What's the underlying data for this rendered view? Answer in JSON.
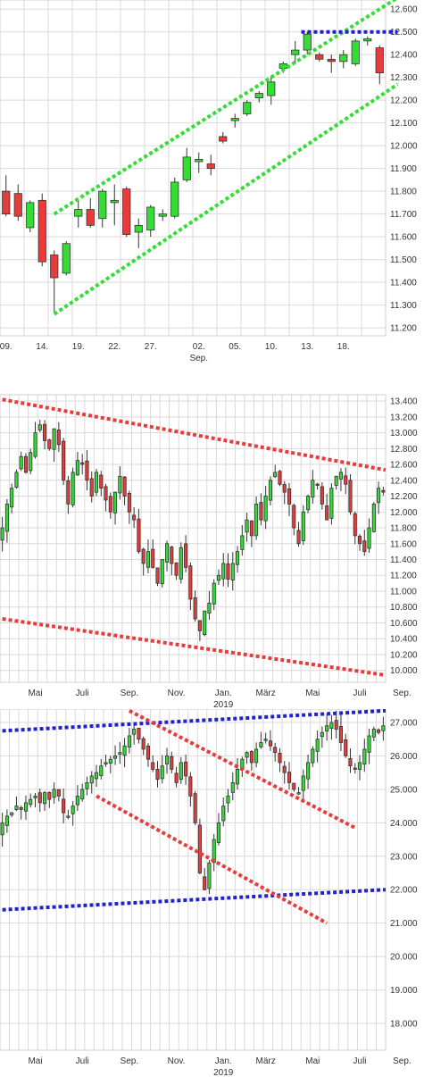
{
  "chart_data": [
    {
      "type": "candlestick",
      "panel": "daily",
      "y_ticks": [
        11200,
        11300,
        11400,
        11500,
        11600,
        11700,
        11800,
        11900,
        12000,
        12100,
        12200,
        12300,
        12400,
        12500,
        12600
      ],
      "y_tick_labels": [
        "11.200",
        "11.300",
        "11.400",
        "11.500",
        "11.600",
        "11.700",
        "11.800",
        "11.900",
        "12.000",
        "12.100",
        "12.200",
        "12.300",
        "12.400",
        "12.500",
        "12.600"
      ],
      "ylim": [
        11165,
        12640
      ],
      "x_tick_labels": [
        {
          "label": "09.",
          "sub": "",
          "index": 0
        },
        {
          "label": "14.",
          "sub": "",
          "index": 3
        },
        {
          "label": "19.",
          "sub": "",
          "index": 6
        },
        {
          "label": "22.",
          "sub": "",
          "index": 9
        },
        {
          "label": "27.",
          "sub": "",
          "index": 12
        },
        {
          "label": "02.",
          "sub": "Sep.",
          "index": 16
        },
        {
          "label": "05.",
          "sub": "",
          "index": 19
        },
        {
          "label": "10.",
          "sub": "",
          "index": 22
        },
        {
          "label": "13.",
          "sub": "",
          "index": 25
        },
        {
          "label": "18.",
          "sub": "",
          "index": 28
        }
      ],
      "candles": [
        {
          "o": 11800,
          "h": 11870,
          "l": 11690,
          "c": 11700
        },
        {
          "o": 11790,
          "h": 11830,
          "l": 11670,
          "c": 11690
        },
        {
          "o": 11640,
          "h": 11760,
          "l": 11620,
          "c": 11750
        },
        {
          "o": 11760,
          "h": 11790,
          "l": 11470,
          "c": 11490
        },
        {
          "o": 11520,
          "h": 11540,
          "l": 11270,
          "c": 11420
        },
        {
          "o": 11440,
          "h": 11580,
          "l": 11430,
          "c": 11570
        },
        {
          "o": 11690,
          "h": 11760,
          "l": 11640,
          "c": 11720
        },
        {
          "o": 11720,
          "h": 11770,
          "l": 11640,
          "c": 11650
        },
        {
          "o": 11680,
          "h": 11810,
          "l": 11640,
          "c": 11800
        },
        {
          "o": 11750,
          "h": 11830,
          "l": 11650,
          "c": 11760
        },
        {
          "o": 11810,
          "h": 11820,
          "l": 11600,
          "c": 11610
        },
        {
          "o": 11620,
          "h": 11680,
          "l": 11550,
          "c": 11650
        },
        {
          "o": 11630,
          "h": 11740,
          "l": 11600,
          "c": 11730
        },
        {
          "o": 11690,
          "h": 11720,
          "l": 11670,
          "c": 11700
        },
        {
          "o": 11690,
          "h": 11860,
          "l": 11680,
          "c": 11840
        },
        {
          "o": 11850,
          "h": 11990,
          "l": 11840,
          "c": 11950
        },
        {
          "o": 11930,
          "h": 11970,
          "l": 11880,
          "c": 11940
        },
        {
          "o": 11920,
          "h": 11960,
          "l": 11870,
          "c": 11900
        },
        {
          "o": 12040,
          "h": 12060,
          "l": 12010,
          "c": 12020
        },
        {
          "o": 12110,
          "h": 12140,
          "l": 12080,
          "c": 12120
        },
        {
          "o": 12140,
          "h": 12200,
          "l": 12130,
          "c": 12190
        },
        {
          "o": 12210,
          "h": 12240,
          "l": 12190,
          "c": 12230
        },
        {
          "o": 12220,
          "h": 12300,
          "l": 12180,
          "c": 12280
        },
        {
          "o": 12340,
          "h": 12370,
          "l": 12320,
          "c": 12360
        },
        {
          "o": 12400,
          "h": 12460,
          "l": 12360,
          "c": 12420
        },
        {
          "o": 12420,
          "h": 12500,
          "l": 12400,
          "c": 12490
        },
        {
          "o": 12400,
          "h": 12410,
          "l": 12370,
          "c": 12380
        },
        {
          "o": 12380,
          "h": 12400,
          "l": 12320,
          "c": 12370
        },
        {
          "o": 12370,
          "h": 12420,
          "l": 12340,
          "c": 12400
        },
        {
          "o": 12360,
          "h": 12470,
          "l": 12350,
          "c": 12460
        },
        {
          "o": 12460,
          "h": 12480,
          "l": 12440,
          "c": 12470
        },
        {
          "o": 12430,
          "h": 12440,
          "l": 12270,
          "c": 12320
        }
      ],
      "trendlines": [
        {
          "color": "#33dd33",
          "from": [
            4,
            11700
          ],
          "to": [
            32.5,
            12650
          ]
        },
        {
          "color": "#33dd33",
          "from": [
            4,
            11260
          ],
          "to": [
            32.5,
            12270
          ]
        },
        {
          "color": "#2222cc",
          "from": [
            24.5,
            12500
          ],
          "to": [
            32.5,
            12500
          ]
        }
      ],
      "colors": {
        "up": "#33dd33",
        "down": "#e83b3b",
        "outline": "#333333"
      }
    },
    {
      "type": "candlestick",
      "panel": "weekly",
      "y_ticks": [
        10000,
        10200,
        10400,
        10600,
        10800,
        11000,
        11200,
        11400,
        11600,
        11800,
        12000,
        12200,
        12400,
        12600,
        12800,
        13000,
        13200,
        13400
      ],
      "y_tick_labels": [
        "10.000",
        "10.200",
        "10.400",
        "10.600",
        "10.800",
        "11.000",
        "11.200",
        "11.400",
        "11.600",
        "11.800",
        "12.000",
        "12.200",
        "12.400",
        "12.600",
        "12.800",
        "13.000",
        "13.200",
        "13.400"
      ],
      "ylim": [
        9850,
        13480
      ],
      "x_tick_labels": [
        {
          "label": "Mai",
          "sub": "",
          "index": 7
        },
        {
          "label": "Juli",
          "sub": "",
          "index": 17
        },
        {
          "label": "Sep.",
          "sub": "",
          "index": 27
        },
        {
          "label": "Nov.",
          "sub": "",
          "index": 37
        },
        {
          "label": "Jan.",
          "sub": "2019",
          "index": 47
        },
        {
          "label": "März",
          "sub": "",
          "index": 56
        },
        {
          "label": "Mai",
          "sub": "",
          "index": 66
        },
        {
          "label": "Juli",
          "sub": "",
          "index": 76
        },
        {
          "label": "Sep.",
          "sub": "",
          "index": 85
        }
      ],
      "closes": [
        11800,
        12100,
        12300,
        12500,
        12700,
        12500,
        12750,
        13000,
        13100,
        12900,
        12800,
        13050,
        12850,
        12400,
        12100,
        12500,
        12650,
        12600,
        12400,
        12200,
        12500,
        12300,
        12150,
        12000,
        12250,
        12450,
        12200,
        12000,
        11900,
        11500,
        11350,
        11500,
        11300,
        11100,
        11400,
        11600,
        11350,
        11200,
        11550,
        11300,
        10900,
        10650,
        10500,
        10750,
        10850,
        11100,
        11200,
        11350,
        11150,
        11350,
        11500,
        11700,
        11900,
        11700,
        12100,
        11900,
        12200,
        12400,
        12500,
        12350,
        12250,
        12100,
        11800,
        11600,
        12000,
        12200,
        12400,
        12350,
        12100,
        11900,
        12300,
        12450,
        12500,
        12350,
        12000,
        11700,
        11600,
        11500,
        11800,
        12100,
        12300,
        12250
      ],
      "colors": {
        "up": "#33dd33",
        "down": "#e83b3b",
        "outline": "#333333"
      }
    },
    {
      "type": "candlestick",
      "panel": "long-term",
      "y_ticks": [
        18000,
        19000,
        20000,
        21000,
        22000,
        23000,
        24000,
        25000,
        26000,
        27000
      ],
      "y_tick_labels": [
        "18.000",
        "19.000",
        "20.000",
        "21.000",
        "22.000",
        "23.000",
        "24.000",
        "25.000",
        "26.000",
        "27.000"
      ],
      "ylim": [
        17200,
        27400
      ],
      "x_tick_labels": [
        {
          "label": "Mai",
          "sub": "",
          "index": 7
        },
        {
          "label": "Juli",
          "sub": "",
          "index": 17
        },
        {
          "label": "Sep.",
          "sub": "",
          "index": 27
        },
        {
          "label": "Nov.",
          "sub": "",
          "index": 37
        },
        {
          "label": "Jan.",
          "sub": "2019",
          "index": 47
        },
        {
          "label": "März",
          "sub": "",
          "index": 56
        },
        {
          "label": "Mai",
          "sub": "",
          "index": 66
        },
        {
          "label": "Juli",
          "sub": "",
          "index": 76
        },
        {
          "label": "Sep.",
          "sub": "",
          "index": 85
        }
      ],
      "closes": [
        24000,
        24200,
        24300,
        24500,
        24400,
        24600,
        24700,
        24800,
        24600,
        24900,
        24700,
        25000,
        24800,
        24300,
        24200,
        24500,
        24800,
        25000,
        25200,
        25400,
        25500,
        25700,
        25800,
        25900,
        26000,
        26100,
        26300,
        26600,
        26800,
        26500,
        26200,
        25900,
        25600,
        25300,
        25700,
        26000,
        25600,
        25200,
        25800,
        25400,
        24800,
        24000,
        22500,
        22000,
        22800,
        23500,
        24000,
        24500,
        24800,
        25200,
        25600,
        25900,
        26100,
        25800,
        26200,
        26400,
        26500,
        26300,
        26100,
        25800,
        25500,
        25200,
        25000,
        24900,
        25400,
        25800,
        26200,
        26500,
        26700,
        26900,
        27000,
        26800,
        26400,
        26000,
        25700,
        25600,
        25800,
        26200,
        26600,
        26800,
        26700,
        26900
      ],
      "colors": {
        "up": "#33dd33",
        "down": "#e83b3b",
        "outline": "#333333"
      }
    }
  ]
}
